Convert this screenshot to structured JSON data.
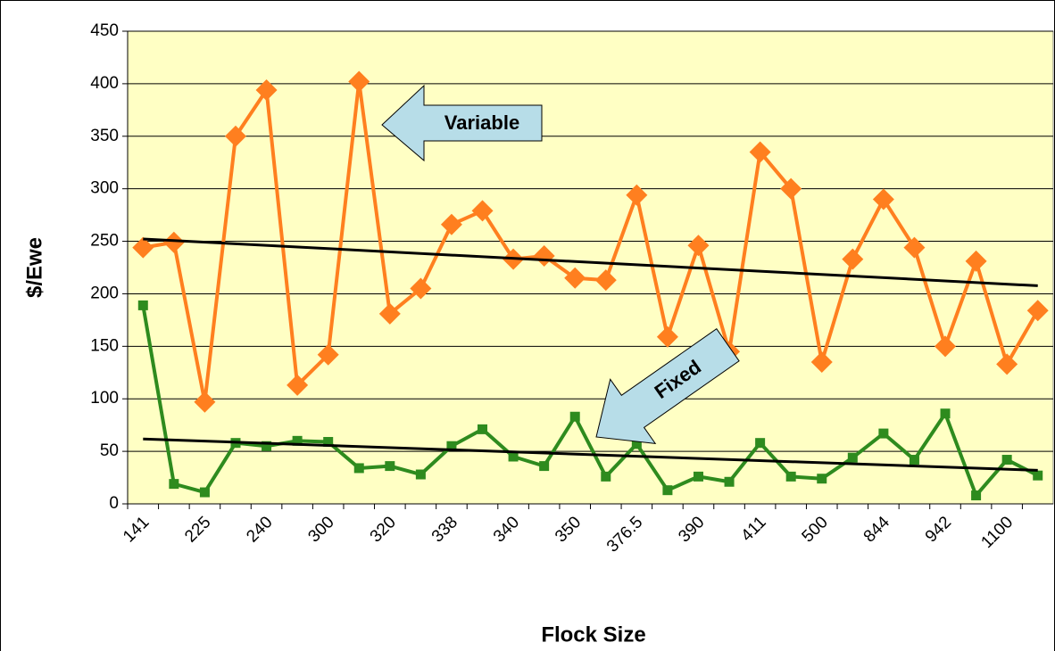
{
  "chart_data": {
    "type": "line",
    "x_label": "Flock Size",
    "y_label": "$/Ewe",
    "categories": [
      "141",
      null,
      "225",
      null,
      "240",
      null,
      "300",
      null,
      "320",
      null,
      "338",
      null,
      "340",
      null,
      "350",
      null,
      "376.5",
      null,
      "390",
      null,
      "411",
      null,
      "500",
      null,
      "844",
      null,
      "942",
      null,
      "1100",
      null
    ],
    "series": [
      {
        "name": "Variable",
        "color": "#ff7f1f",
        "marker": "diamond",
        "trendline": true,
        "values": [
          244,
          249,
          97,
          350,
          394,
          113,
          142,
          402,
          181,
          205,
          266,
          279,
          233,
          236,
          215,
          213,
          294,
          159,
          246,
          145,
          335,
          300,
          135,
          233,
          290,
          244,
          150,
          231,
          133,
          184
        ]
      },
      {
        "name": "Fixed",
        "color": "#2e8b1e",
        "marker": "square",
        "trendline": true,
        "values": [
          189,
          19,
          11,
          58,
          55,
          60,
          59,
          34,
          36,
          28,
          55,
          71,
          45,
          36,
          83,
          26,
          57,
          13,
          26,
          21,
          58,
          26,
          24,
          44,
          67,
          42,
          86,
          8,
          42,
          27
        ]
      }
    ],
    "annotations": [
      "Variable",
      "Fixed"
    ],
    "ylim": [
      0,
      450
    ],
    "yticks": [
      0,
      50,
      100,
      150,
      200,
      250,
      300,
      350,
      400,
      450
    ],
    "grid": true,
    "background": "#ffffc4",
    "trend_color": "#000000"
  }
}
